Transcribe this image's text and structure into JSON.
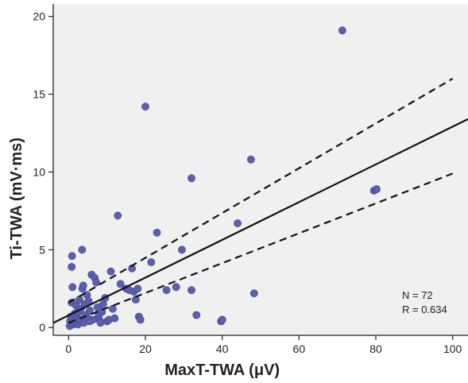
{
  "chart_data": {
    "type": "scatter",
    "title": "",
    "xlabel": "MaxT-TWA (μV)",
    "ylabel": "Ti-TWA (mV·ms)",
    "xlim": [
      -4,
      104
    ],
    "ylim": [
      -0.5,
      20.8
    ],
    "x_ticks": [
      "0",
      "20",
      "40",
      "60",
      "80",
      "100"
    ],
    "x_tick_values": [
      0,
      20,
      40,
      60,
      80,
      100
    ],
    "y_ticks": [
      "0",
      "5",
      "10",
      "15",
      "20"
    ],
    "y_tick_values": [
      0,
      5,
      10,
      15,
      20
    ],
    "grid": false,
    "colors": {
      "plot_bg": "#f0f0f0",
      "point": "#5a60ae",
      "point_edge": "#3d4390",
      "line": "#111111"
    },
    "points": [
      [
        0.3,
        0.1
      ],
      [
        0.4,
        0.4
      ],
      [
        0.6,
        0.7
      ],
      [
        0.8,
        1.6
      ],
      [
        1.0,
        2.6
      ],
      [
        0.8,
        3.9
      ],
      [
        0.9,
        4.6
      ],
      [
        1.2,
        0.2
      ],
      [
        1.4,
        0.5
      ],
      [
        1.6,
        0.9
      ],
      [
        1.8,
        0.3
      ],
      [
        2.0,
        1.4
      ],
      [
        2.3,
        0.6
      ],
      [
        2.5,
        0.2
      ],
      [
        2.7,
        1.0
      ],
      [
        3.0,
        0.5
      ],
      [
        3.2,
        1.2
      ],
      [
        3.5,
        5.0
      ],
      [
        3.6,
        2.5
      ],
      [
        3.8,
        2.7
      ],
      [
        4.0,
        0.3
      ],
      [
        4.2,
        1.5
      ],
      [
        4.5,
        0.8
      ],
      [
        4.8,
        2.1
      ],
      [
        5.0,
        0.6
      ],
      [
        5.2,
        1.7
      ],
      [
        5.5,
        1.1
      ],
      [
        6.0,
        3.4
      ],
      [
        6.3,
        0.5
      ],
      [
        6.8,
        3.2
      ],
      [
        7.2,
        2.9
      ],
      [
        7.5,
        1.3
      ],
      [
        7.8,
        0.8
      ],
      [
        8.0,
        0.5
      ],
      [
        8.3,
        0.3
      ],
      [
        8.7,
        1.0
      ],
      [
        9.0,
        1.5
      ],
      [
        9.5,
        1.9
      ],
      [
        10.0,
        0.4
      ],
      [
        10.5,
        0.5
      ],
      [
        11.0,
        3.6
      ],
      [
        11.5,
        1.2
      ],
      [
        12.0,
        0.6
      ],
      [
        12.8,
        7.2
      ],
      [
        13.5,
        2.8
      ],
      [
        15.0,
        2.5
      ],
      [
        16.5,
        3.8
      ],
      [
        17.0,
        2.3
      ],
      [
        17.5,
        1.8
      ],
      [
        18.0,
        2.5
      ],
      [
        18.3,
        0.7
      ],
      [
        18.7,
        0.5
      ],
      [
        20.0,
        14.2
      ],
      [
        21.5,
        4.2
      ],
      [
        23.0,
        6.1
      ],
      [
        25.5,
        2.4
      ],
      [
        28.0,
        2.6
      ],
      [
        29.5,
        5.0
      ],
      [
        32.0,
        9.6
      ],
      [
        32.0,
        2.4
      ],
      [
        33.3,
        0.8
      ],
      [
        39.7,
        0.4
      ],
      [
        40.0,
        0.5
      ],
      [
        44.0,
        6.7
      ],
      [
        47.5,
        10.8
      ],
      [
        48.3,
        2.2
      ],
      [
        71.3,
        19.1
      ],
      [
        79.5,
        8.8
      ],
      [
        80.2,
        8.9
      ],
      [
        5.5,
        0.4
      ],
      [
        2.8,
        1.8
      ],
      [
        15.8,
        2.4
      ]
    ],
    "fit_line": {
      "x": [
        -4,
        104
      ],
      "y": [
        0.3,
        13.4
      ]
    },
    "ci_lower": {
      "x": [
        0,
        100
      ],
      "y": [
        0.3,
        9.9
      ]
    },
    "ci_upper": {
      "x": [
        0,
        100
      ],
      "y": [
        1.6,
        16.0
      ]
    },
    "annotations": [
      "N = 72",
      "R = 0.634"
    ]
  }
}
